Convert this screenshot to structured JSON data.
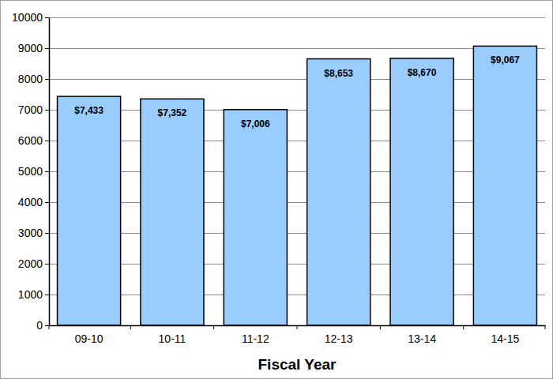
{
  "chart_data": {
    "type": "bar",
    "xlabel": "Fiscal Year",
    "categories": [
      "09-10",
      "10-11",
      "11-12",
      "12-13",
      "13-14",
      "14-15"
    ],
    "values": [
      7433,
      7352,
      7006,
      8653,
      8670,
      9067
    ],
    "value_labels": [
      "$7,433",
      "$7,352",
      "$7,006",
      "$8,653",
      "$8,670",
      "$9,067"
    ],
    "color": "#99ccff",
    "ylim": [
      0,
      10000
    ],
    "yticks": [
      0,
      1000,
      2000,
      3000,
      4000,
      5000,
      6000,
      7000,
      8000,
      9000,
      10000
    ],
    "grid": true,
    "data_labels": true
  }
}
